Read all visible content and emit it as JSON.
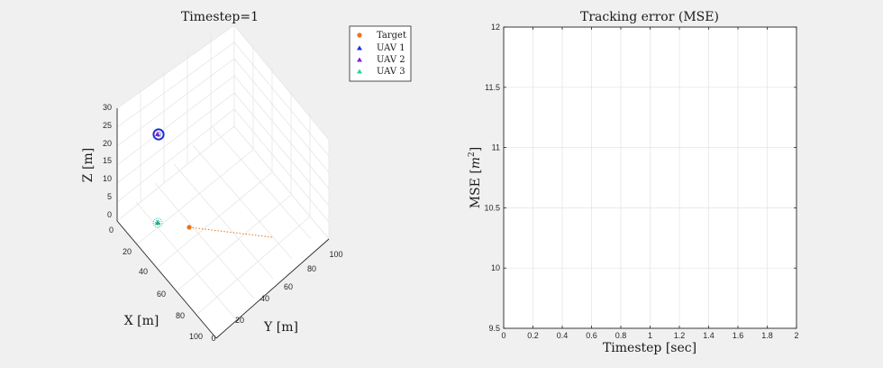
{
  "left_chart": {
    "title": "Timestep=1",
    "xlabel": "X [m]",
    "ylabel": "Y [m]",
    "zlabel": "Z [m]",
    "x_ticks": [
      "0",
      "20",
      "40",
      "60",
      "80",
      "100"
    ],
    "y_ticks": [
      "0",
      "20",
      "40",
      "60",
      "80",
      "100"
    ],
    "z_ticks": [
      "0",
      "5",
      "10",
      "15",
      "20",
      "25",
      "30"
    ],
    "legend": [
      "Target",
      "UAV 1",
      "UAV 2",
      "UAV 3"
    ]
  },
  "right_chart": {
    "title": "Tracking error (MSE)",
    "xlabel": "Timestep [sec]",
    "ylabel_prefix": "MSE [",
    "ylabel_var": "m",
    "ylabel_exp": "2",
    "ylabel_suffix": "]",
    "x_ticks": [
      "0",
      "0.2",
      "0.4",
      "0.6",
      "0.8",
      "1",
      "1.2",
      "1.4",
      "1.6",
      "1.8",
      "2"
    ],
    "y_ticks": [
      "9.5",
      "10",
      "10.5",
      "11",
      "11.5",
      "12"
    ]
  },
  "colors": {
    "target": "#e8731a",
    "uav1": "#1f2fd6",
    "uav2": "#8b1fd6",
    "uav3": "#1fd6a0"
  },
  "chart_data": [
    {
      "type": "scatter",
      "projection": "3d",
      "title": "Timestep=1",
      "xlabel": "X [m]",
      "ylabel": "Y [m]",
      "zlabel": "Z [m]",
      "xlim": [
        0,
        100
      ],
      "ylim": [
        0,
        100
      ],
      "zlim": [
        0,
        30
      ],
      "grid": true,
      "legend_position": "top-right",
      "series": [
        {
          "name": "Target",
          "marker": "circle",
          "points": [
            {
              "x": 35,
              "y": 5,
              "z": 0
            }
          ],
          "trajectory": [
            {
              "x": 35,
              "y": 5,
              "z": 0
            },
            {
              "x": 65,
              "y": 35,
              "z": 0
            }
          ]
        },
        {
          "name": "UAV 1",
          "marker": "triangle",
          "points": [
            {
              "x": 5,
              "y": 0,
              "z": 22
            }
          ]
        },
        {
          "name": "UAV 2",
          "marker": "triangle",
          "points": [
            {
              "x": 5,
              "y": 0,
              "z": 22
            }
          ]
        },
        {
          "name": "UAV 3",
          "marker": "triangle",
          "points": [
            {
              "x": 20,
              "y": 0,
              "z": 0
            }
          ]
        }
      ]
    },
    {
      "type": "line",
      "title": "Tracking error (MSE)",
      "xlabel": "Timestep [sec]",
      "ylabel": "MSE [m^2]",
      "xlim": [
        0,
        2
      ],
      "ylim": [
        9.5,
        12
      ],
      "grid": true,
      "series": []
    }
  ]
}
